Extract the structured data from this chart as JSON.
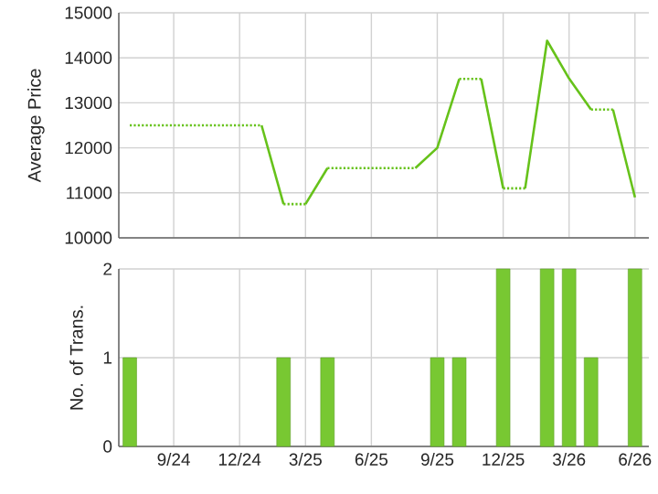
{
  "chart_data": [
    {
      "type": "line",
      "ylabel": "Average Price",
      "marker": "none",
      "grid": true,
      "tick_labels": "y",
      "xlim": [
        "2024-06-16",
        "2026-06-20"
      ],
      "ylim": [
        10000,
        15000
      ],
      "yticks": [
        10000,
        11000,
        12000,
        13000,
        14000,
        15000
      ],
      "xticks": [
        {
          "value": "2024-09",
          "label": null
        },
        {
          "value": "2024-12",
          "label": null
        },
        {
          "value": "2025-03",
          "label": null
        },
        {
          "value": "2025-06",
          "label": null
        },
        {
          "value": "2025-09",
          "label": null
        },
        {
          "value": "2025-12",
          "label": null
        },
        {
          "value": "2026-03",
          "label": null
        },
        {
          "value": "2026-06",
          "label": null
        }
      ],
      "series": [
        {
          "color": "#66c21a",
          "line_style": "dotted",
          "x": [
            "2024-07",
            "2025-01"
          ],
          "values": [
            12500,
            12500
          ]
        },
        {
          "color": "#66c21a",
          "line_style": "solid",
          "x": [
            "2025-01",
            "2025-02"
          ],
          "values": [
            12500,
            10750
          ]
        },
        {
          "color": "#66c21a",
          "line_style": "dotted",
          "x": [
            "2025-02",
            "2025-03"
          ],
          "values": [
            10750,
            10750
          ]
        },
        {
          "color": "#66c21a",
          "line_style": "solid",
          "x": [
            "2025-03",
            "2025-04"
          ],
          "values": [
            10750,
            11550
          ]
        },
        {
          "color": "#66c21a",
          "line_style": "dotted",
          "x": [
            "2025-04",
            "2025-08"
          ],
          "values": [
            11550,
            11550
          ]
        },
        {
          "color": "#66c21a",
          "line_style": "solid",
          "x": [
            "2025-08",
            "2025-09",
            "2025-10"
          ],
          "values": [
            11550,
            12000,
            13530
          ]
        },
        {
          "color": "#66c21a",
          "line_style": "dotted",
          "x": [
            "2025-10",
            "2025-11"
          ],
          "values": [
            13530,
            13530
          ]
        },
        {
          "color": "#66c21a",
          "line_style": "solid",
          "x": [
            "2025-11",
            "2025-12"
          ],
          "values": [
            13530,
            11100
          ]
        },
        {
          "color": "#66c21a",
          "line_style": "dotted",
          "x": [
            "2025-12",
            "2026-01"
          ],
          "values": [
            11100,
            11100
          ]
        },
        {
          "color": "#66c21a",
          "line_style": "solid",
          "x": [
            "2026-01",
            "2026-02",
            "2026-03",
            "2026-04"
          ],
          "values": [
            11100,
            14380,
            13540,
            12850
          ]
        },
        {
          "color": "#66c21a",
          "line_style": "dotted",
          "x": [
            "2026-04",
            "2026-05"
          ],
          "values": [
            12850,
            12850
          ]
        },
        {
          "color": "#66c21a",
          "line_style": "solid",
          "x": [
            "2026-05",
            "2026-06"
          ],
          "values": [
            12850,
            10900
          ]
        }
      ]
    },
    {
      "type": "bar",
      "ylabel": "No. of Trans.",
      "grid": true,
      "xlim": [
        "2024-06-16",
        "2026-06-20"
      ],
      "ylim": [
        0,
        2
      ],
      "yticks": [
        0,
        1,
        2
      ],
      "xticks": [
        {
          "value": "2024-09",
          "label": "9/24"
        },
        {
          "value": "2024-12",
          "label": "12/24"
        },
        {
          "value": "2025-03",
          "label": "3/25"
        },
        {
          "value": "2025-06",
          "label": "6/25"
        },
        {
          "value": "2025-09",
          "label": "9/25"
        },
        {
          "value": "2025-12",
          "label": "12/25"
        },
        {
          "value": "2026-03",
          "label": "3/26"
        },
        {
          "value": "2026-06",
          "label": "6/26"
        }
      ],
      "x": [
        "2024-07",
        "2025-02",
        "2025-04",
        "2025-09",
        "2025-10",
        "2025-12",
        "2026-02",
        "2026-03",
        "2026-04",
        "2026-06"
      ],
      "series": [
        {
          "color": "#78c832",
          "values": [
            1,
            1,
            1,
            1,
            1,
            2,
            2,
            2,
            1,
            2
          ]
        }
      ]
    }
  ]
}
